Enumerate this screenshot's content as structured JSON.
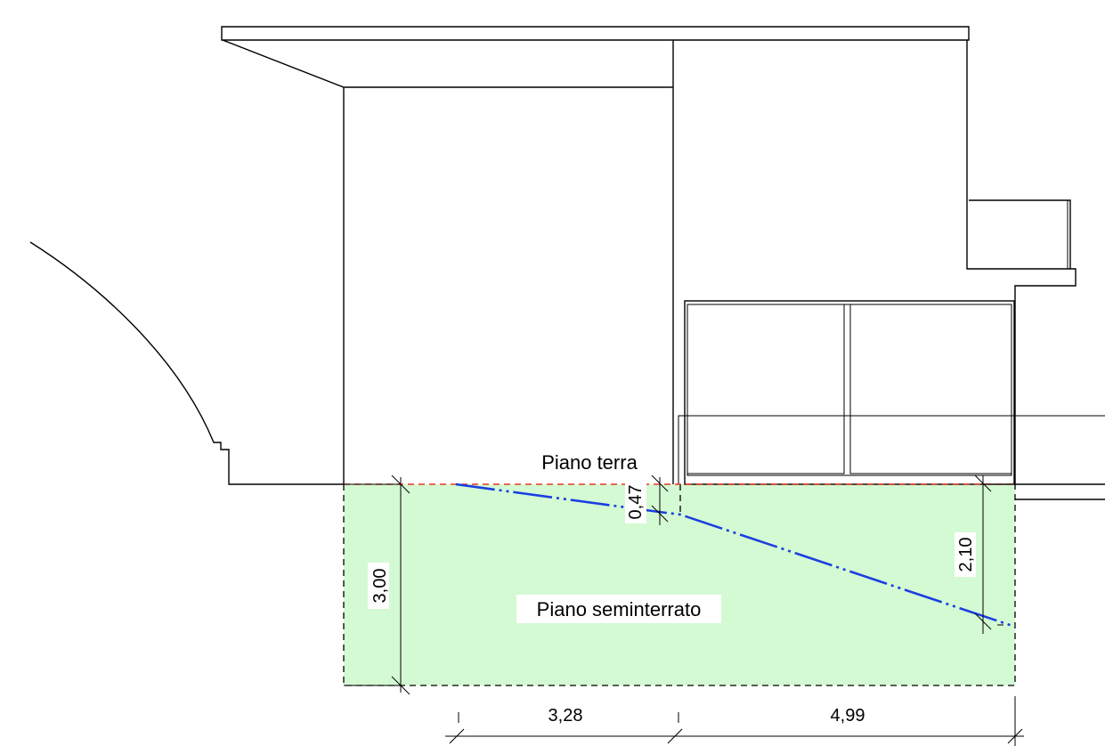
{
  "colors": {
    "ground_fill": "#d4fad4",
    "terrain_line": "#1a3fe0",
    "reference_line": "#e83a1e",
    "lines": "#000000"
  },
  "labels": {
    "piano_terra": "Piano terra",
    "piano_seminterrato": "Piano seminterrato"
  },
  "dimensions": {
    "height_left": "3,00",
    "height_mid": "0,47",
    "height_right": "2,10",
    "width_left": "3,28",
    "width_right": "4,99"
  }
}
